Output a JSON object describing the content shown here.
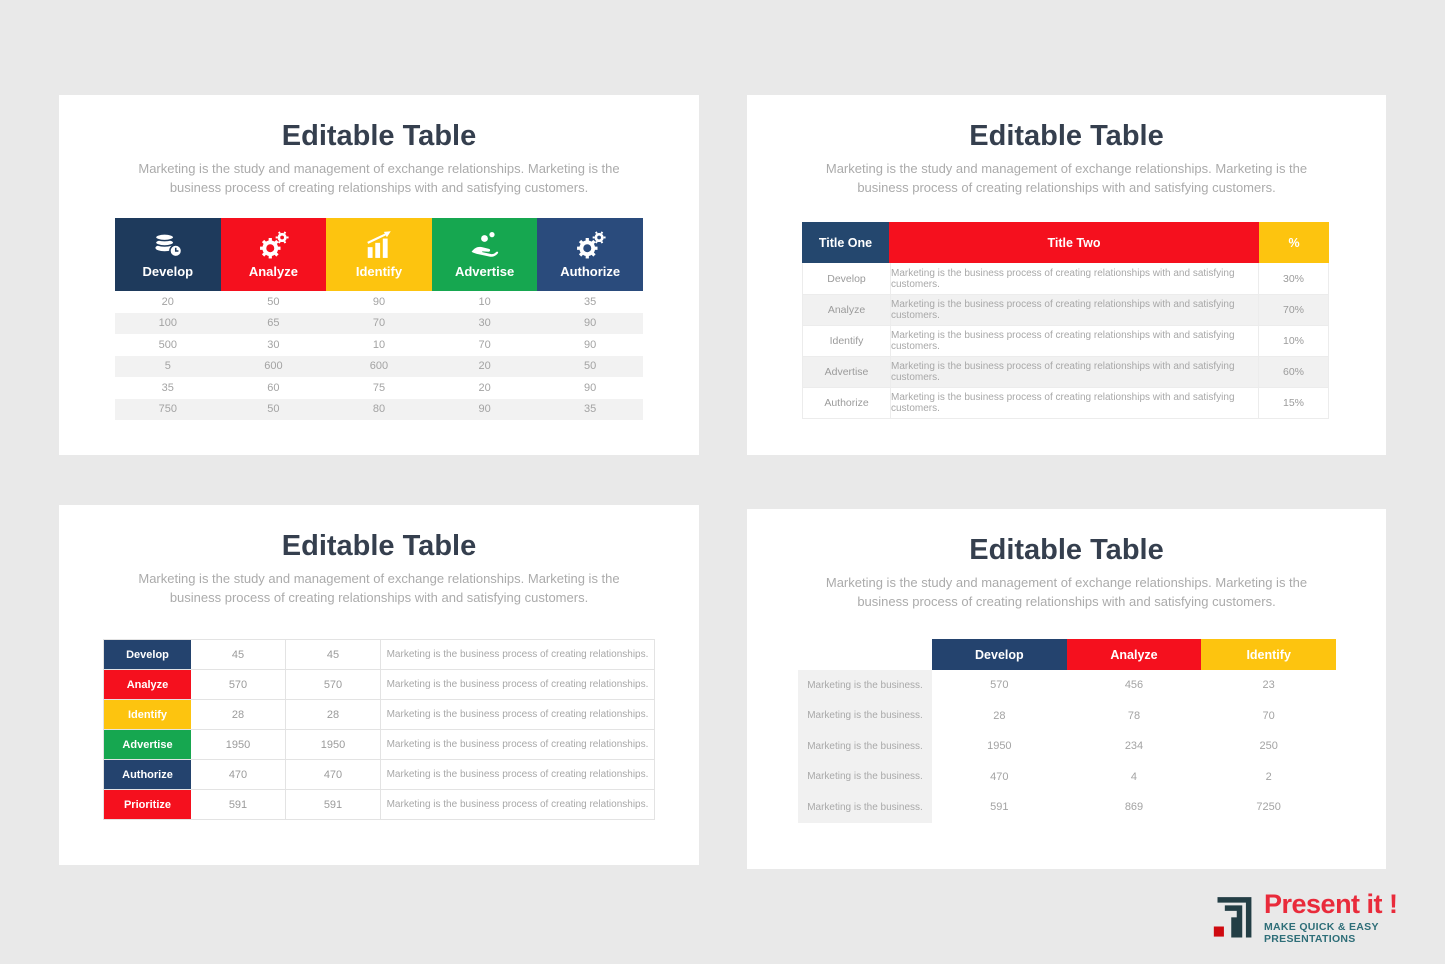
{
  "page": {
    "background": "#e9e9e9"
  },
  "shared": {
    "title": "Editable Table",
    "subtitle": "Marketing is the study and management of exchange relationships. Marketing is the business process of creating relationships with and satisfying customers."
  },
  "palette": {
    "navy_dark": "#1e3a5c",
    "navy": "#24436e",
    "navy_light": "#2a4b7c",
    "red": "#f5101e",
    "yellow": "#fdc40f",
    "green": "#16a750",
    "stripe": "#f2f2f2",
    "cell_text": "#a3a3a3"
  },
  "slides": {
    "top_left": {
      "columns": [
        {
          "label": "Develop",
          "icon": "coins-icon",
          "color": "#1e3a5c"
        },
        {
          "label": "Analyze",
          "icon": "gears-icon",
          "color": "#f5101e"
        },
        {
          "label": "Identify",
          "icon": "chart-icon",
          "color": "#fdc40f"
        },
        {
          "label": "Advertise",
          "icon": "hand-coins-icon",
          "color": "#16a750"
        },
        {
          "label": "Authorize",
          "icon": "gears-icon",
          "color": "#2a4b7c"
        }
      ],
      "rows": [
        [
          "20",
          "50",
          "90",
          "10",
          "35"
        ],
        [
          "100",
          "65",
          "70",
          "30",
          "90"
        ],
        [
          "500",
          "30",
          "10",
          "70",
          "90"
        ],
        [
          "5",
          "600",
          "600",
          "20",
          "50"
        ],
        [
          "35",
          "60",
          "75",
          "20",
          "90"
        ],
        [
          "750",
          "50",
          "80",
          "90",
          "35"
        ]
      ]
    },
    "top_right": {
      "headers": [
        {
          "label": "Title One",
          "color": "#24476e"
        },
        {
          "label": "Title Two",
          "color": "#f5101e"
        },
        {
          "label": "%",
          "color": "#fdc40f"
        }
      ],
      "rows": [
        {
          "label": "Develop",
          "desc": "Marketing is the business process of creating relationships with and satisfying customers.",
          "pct": "30%"
        },
        {
          "label": "Analyze",
          "desc": "Marketing is the business process of creating relationships with and satisfying customers.",
          "pct": "70%"
        },
        {
          "label": "Identify",
          "desc": "Marketing is the business process of creating relationships with and satisfying customers.",
          "pct": "10%"
        },
        {
          "label": "Advertise",
          "desc": "Marketing is the business process of creating relationships with and satisfying customers.",
          "pct": "60%"
        },
        {
          "label": "Authorize",
          "desc": "Marketing is the business process of creating relationships with and satisfying customers.",
          "pct": "15%"
        }
      ]
    },
    "bottom_left": {
      "rows": [
        {
          "label": "Develop",
          "color": "#24436e",
          "v1": "45",
          "v2": "45",
          "desc": "Marketing is the business process of creating relationships."
        },
        {
          "label": "Analyze",
          "color": "#f5101e",
          "v1": "570",
          "v2": "570",
          "desc": "Marketing is the business process of creating relationships."
        },
        {
          "label": "Identify",
          "color": "#fdc40f",
          "v1": "28",
          "v2": "28",
          "desc": "Marketing is the business process of creating relationships."
        },
        {
          "label": "Advertise",
          "color": "#16a750",
          "v1": "1950",
          "v2": "1950",
          "desc": "Marketing is the business process of creating relationships."
        },
        {
          "label": "Authorize",
          "color": "#24436e",
          "v1": "470",
          "v2": "470",
          "desc": "Marketing is the business process of creating relationships."
        },
        {
          "label": "Prioritize",
          "color": "#f5101e",
          "v1": "591",
          "v2": "591",
          "desc": "Marketing is the business process of creating relationships."
        }
      ]
    },
    "bottom_right": {
      "row_label": "Marketing is the business.",
      "headers": [
        {
          "label": "Develop",
          "color": "#24436e"
        },
        {
          "label": "Analyze",
          "color": "#f5101e"
        },
        {
          "label": "Identify",
          "color": "#fdc40f"
        }
      ],
      "rows": [
        [
          "570",
          "456",
          "23"
        ],
        [
          "28",
          "78",
          "70"
        ],
        [
          "1950",
          "234",
          "250"
        ],
        [
          "470",
          "4",
          "2"
        ],
        [
          "591",
          "869",
          "7250"
        ]
      ]
    }
  },
  "logo": {
    "name": "Present it !",
    "tagline": "MAKE QUICK & EASY PRESENTATIONS",
    "name_color": "#e92b3b",
    "tagline_color": "#2e6e78",
    "icon": "presentit-nested-corners-icon",
    "icon_color": "#233e45",
    "icon_accent": "#cf0a10"
  }
}
